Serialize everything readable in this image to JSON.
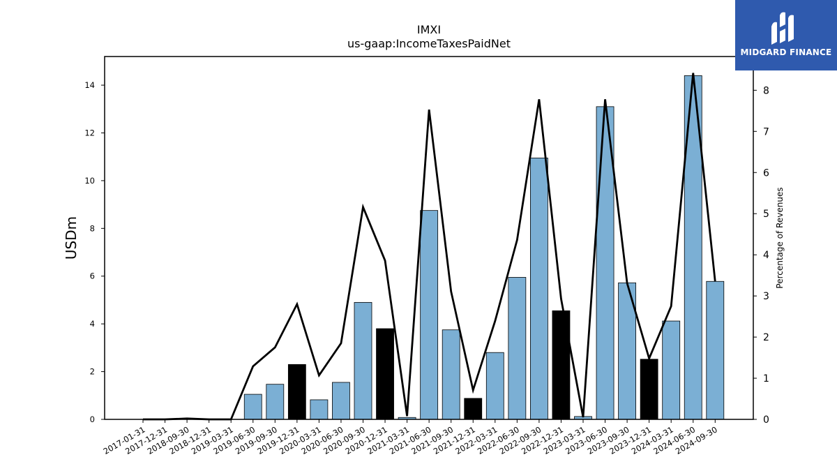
{
  "chart_data": {
    "type": "bar",
    "title": "IMXI",
    "subtitle": "us-gaap:IncomeTaxesPaidNet",
    "ylabel": "USDm",
    "ylabel_right": "Percentage of Revenues",
    "ylim": [
      0,
      15.2
    ],
    "ylim_right": [
      0,
      8.82
    ],
    "yticks": [
      0,
      2,
      4,
      6,
      8,
      10,
      12,
      14
    ],
    "yticks_right": [
      0,
      1,
      2,
      3,
      4,
      5,
      6,
      7,
      8
    ],
    "categories": [
      "2017-01-31",
      "2017-12-31",
      "2018-09-30",
      "2018-12-31",
      "2019-03-31",
      "2019-06-30",
      "2019-09-30",
      "2019-12-31",
      "2020-03-31",
      "2020-06-30",
      "2020-09-30",
      "2020-12-31",
      "2021-03-31",
      "2021-06-30",
      "2021-09-30",
      "2021-12-31",
      "2022-03-31",
      "2022-06-30",
      "2022-09-30",
      "2022-12-31",
      "2023-03-31",
      "2023-06-30",
      "2023-09-30",
      "2023-12-31",
      "2024-03-31",
      "2024-06-30",
      "2024-09-30"
    ],
    "series": [
      {
        "kind": "bar",
        "values": [
          0,
          0,
          0,
          0,
          0,
          1.05,
          1.47,
          2.3,
          0.82,
          1.55,
          4.9,
          3.8,
          0.08,
          8.75,
          3.75,
          0.88,
          2.8,
          5.95,
          10.95,
          4.55,
          0.12,
          13.1,
          5.72,
          2.52,
          4.12,
          14.4,
          5.78
        ]
      },
      {
        "kind": "line",
        "axis": "right",
        "values": [
          0,
          0,
          0.02,
          0,
          0,
          1.29,
          1.75,
          2.8,
          1.07,
          1.85,
          5.16,
          3.86,
          0.08,
          7.53,
          3.11,
          0.71,
          2.39,
          4.36,
          7.78,
          2.93,
          0.05,
          7.78,
          3.31,
          1.48,
          2.75,
          8.42,
          3.35
        ]
      }
    ],
    "bar_highlight_indices": [
      7,
      11,
      15,
      19,
      23
    ],
    "colors": {
      "bar": "#7bafd4",
      "bar_highlight": "#000000",
      "line": "#000000",
      "bar_edge": "#000000"
    },
    "grid": false,
    "legend": "none"
  },
  "logo": {
    "text": "MIDGARD FINANCE",
    "background": "#2f5aae",
    "mark_icon": "midgard-logo-mark-icon"
  }
}
